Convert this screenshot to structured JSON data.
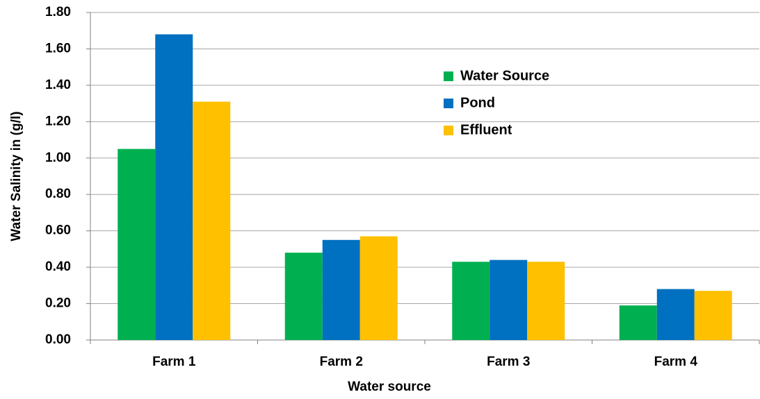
{
  "chart_data": {
    "type": "bar",
    "x_label": "Water source",
    "y_label": "Water Salinity in (g/l)",
    "categories": [
      "Farm 1",
      "Farm 2",
      "Farm 3",
      "Farm 4"
    ],
    "series": [
      {
        "name": "Water Source",
        "color": "#00b050",
        "values": [
          1.05,
          0.48,
          0.43,
          0.19
        ]
      },
      {
        "name": "Pond",
        "color": "#0070c0",
        "values": [
          1.68,
          0.55,
          0.44,
          0.28
        ]
      },
      {
        "name": "Effluent",
        "color": "#ffc000",
        "values": [
          1.31,
          0.57,
          0.43,
          0.27
        ]
      }
    ],
    "ylim": [
      0,
      1.8
    ],
    "yticks": [
      {
        "value": 0,
        "label": "0.00"
      },
      {
        "value": 0.2,
        "label": "0.20"
      },
      {
        "value": 0.4,
        "label": "0.40"
      },
      {
        "value": 0.6,
        "label": "0.60"
      },
      {
        "value": 0.8,
        "label": "0.80"
      },
      {
        "value": 1.0,
        "label": "1.00"
      },
      {
        "value": 1.2,
        "label": "1.20"
      },
      {
        "value": 1.4,
        "label": "1.40"
      },
      {
        "value": 1.6,
        "label": "1.60"
      },
      {
        "value": 1.8,
        "label": "1.80"
      }
    ],
    "grid": true,
    "legend_position": "upper-right"
  }
}
